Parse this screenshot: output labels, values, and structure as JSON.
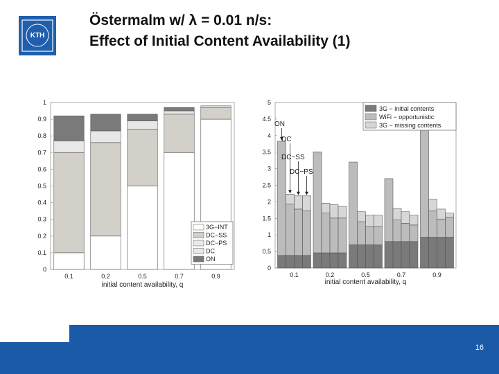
{
  "slide": {
    "title_line1": "Östermalm w/ λ = 0.01 n/s:",
    "title_line2": "Effect of Initial Content Availability (1)",
    "page_number": "16",
    "logo_text": "KTH"
  },
  "colors": {
    "footer": "#1a5aa6",
    "logo_bg": "#1f5fae",
    "white": "#ffffff",
    "light": "#e8e8e8",
    "mid": "#d2d0c8",
    "dark": "#7a7a7a",
    "light2": "#d7d7d7",
    "mid2": "#bcbcbc"
  },
  "chart_data": [
    {
      "type": "bar",
      "stacked": true,
      "xlabel": "initial content availability, q",
      "categories": [
        "0.1",
        "0.2",
        "0.5",
        "0.7",
        "0.9"
      ],
      "ylim": [
        0,
        1
      ],
      "yticks": [
        "0",
        "0.1",
        "0.2",
        "0.3",
        "0.4",
        "0.5",
        "0.6",
        "0.7",
        "0.8",
        "0.9",
        "1"
      ],
      "legend_position": "bottom-right",
      "series": [
        {
          "name": "3G−INT",
          "color": "#ffffff",
          "values": [
            0.1,
            0.2,
            0.5,
            0.7,
            0.9
          ]
        },
        {
          "name": "DC−SS",
          "color": "#d2d0c8",
          "values": [
            0.6,
            0.56,
            0.34,
            0.23,
            0.07
          ]
        },
        {
          "name": "DC−PS",
          "color": "#e8e8e8",
          "values": [
            0.0,
            0.0,
            0.0,
            0.0,
            0.0
          ]
        },
        {
          "name": "DC",
          "color": "#e8e8e8",
          "values": [
            0.07,
            0.07,
            0.05,
            0.02,
            0.01
          ]
        },
        {
          "name": "ON",
          "color": "#7a7a7a",
          "values": [
            0.15,
            0.1,
            0.04,
            0.02,
            0.0
          ]
        }
      ]
    },
    {
      "type": "bar",
      "stacked": true,
      "xlabel": "initial content availability, q",
      "categories": [
        "0.1",
        "0.2",
        "0.5",
        "0.7",
        "0.9"
      ],
      "bar_labels": [
        "ON",
        "DC",
        "DC−SS",
        "DC−PS"
      ],
      "ylim": [
        0,
        5
      ],
      "yticks": [
        "0",
        "0.5",
        "1",
        "1.5",
        "2",
        "2.5",
        "3",
        "3.5",
        "4",
        "4.5",
        "5"
      ],
      "legend_position": "top-right",
      "series": [
        {
          "name": "3G − initial contents",
          "color": "#7a7a7a",
          "groups": [
            [
              0.38,
              0.38,
              0.38,
              0.38
            ],
            [
              0.46,
              0.46,
              0.46,
              0.46
            ],
            [
              0.7,
              0.7,
              0.7,
              0.7
            ],
            [
              0.8,
              0.8,
              0.8,
              0.8
            ],
            [
              0.93,
              0.93,
              0.93,
              0.93
            ]
          ]
        },
        {
          "name": "WiFi − opportunistic",
          "color": "#bcbcbc",
          "groups": [
            [
              3.45,
              1.55,
              1.4,
              1.35
            ],
            [
              3.05,
              1.2,
              1.05,
              1.05
            ],
            [
              2.5,
              0.7,
              0.55,
              0.55
            ],
            [
              1.9,
              0.65,
              0.55,
              0.5
            ],
            [
              3.5,
              0.8,
              0.55,
              0.6
            ]
          ]
        },
        {
          "name": "3G − missing contents",
          "color": "#d7d7d7",
          "groups": [
            [
              0.0,
              0.3,
              0.4,
              0.45
            ],
            [
              0.0,
              0.3,
              0.4,
              0.35
            ],
            [
              0.0,
              0.3,
              0.35,
              0.35
            ],
            [
              0.0,
              0.35,
              0.35,
              0.3
            ],
            [
              0.0,
              0.35,
              0.3,
              0.13
            ]
          ]
        }
      ],
      "annotations": [
        "ON",
        "DC",
        "DC−SS",
        "DC−PS"
      ]
    }
  ]
}
